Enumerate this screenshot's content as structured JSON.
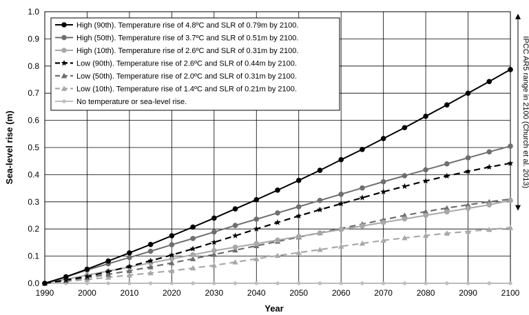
{
  "chart_data": {
    "type": "line",
    "title": "",
    "xlabel": "Year",
    "ylabel": "Sea-level rise (m)",
    "xlim": [
      1990,
      2100
    ],
    "ylim": [
      0,
      1.0
    ],
    "x_ticks": [
      "1990",
      "2000",
      "2010",
      "2020",
      "2030",
      "2040",
      "2050",
      "2060",
      "2070",
      "2080",
      "2090",
      "2100"
    ],
    "y_ticks": [
      "0.0",
      "0.1",
      "0.2",
      "0.3",
      "0.4",
      "0.5",
      "0.6",
      "0.7",
      "0.8",
      "0.9",
      "1.0"
    ],
    "grid": true,
    "legend_position": "top-left",
    "x": [
      1990,
      1995,
      2000,
      2005,
      2010,
      2015,
      2020,
      2025,
      2030,
      2035,
      2040,
      2045,
      2050,
      2055,
      2060,
      2065,
      2070,
      2075,
      2080,
      2085,
      2090,
      2095,
      2100
    ],
    "series": [
      {
        "name": "High (90th). Temperature rise of 4.8ºC and SLR of 0.79m by 2100.",
        "color": "#000000",
        "dash": "solid",
        "marker": "circle",
        "values": [
          0.0,
          0.024,
          0.052,
          0.082,
          0.112,
          0.143,
          0.175,
          0.207,
          0.24,
          0.274,
          0.308,
          0.343,
          0.379,
          0.416,
          0.455,
          0.493,
          0.533,
          0.573,
          0.615,
          0.657,
          0.7,
          0.743,
          0.787
        ]
      },
      {
        "name": "High (50th). Temperature rise of 3.7ºC and SLR of 0.51m by 2100.",
        "color": "#6e6e6e",
        "dash": "solid",
        "marker": "circle",
        "values": [
          0.0,
          0.023,
          0.049,
          0.072,
          0.095,
          0.118,
          0.142,
          0.165,
          0.189,
          0.213,
          0.236,
          0.259,
          0.282,
          0.305,
          0.328,
          0.351,
          0.374,
          0.396,
          0.418,
          0.44,
          0.462,
          0.484,
          0.505
        ]
      },
      {
        "name": "High (10th). Temperature rise of 2.6ºC and SLR of 0.31m by 2100.",
        "color": "#a8a8a8",
        "dash": "solid",
        "marker": "circle",
        "values": [
          0.0,
          0.015,
          0.03,
          0.045,
          0.06,
          0.075,
          0.09,
          0.105,
          0.12,
          0.133,
          0.146,
          0.159,
          0.172,
          0.185,
          0.198,
          0.211,
          0.224,
          0.237,
          0.25,
          0.263,
          0.276,
          0.289,
          0.305
        ]
      },
      {
        "name": "Low (90th). Temperature rise of 2.6ºC and SLR of 0.44m by 2100.",
        "color": "#000000",
        "dash": "dashed",
        "marker": "star",
        "values": [
          0.0,
          0.012,
          0.025,
          0.043,
          0.062,
          0.083,
          0.104,
          0.127,
          0.151,
          0.175,
          0.2,
          0.224,
          0.248,
          0.271,
          0.293,
          0.315,
          0.337,
          0.357,
          0.377,
          0.395,
          0.412,
          0.428,
          0.442
        ]
      },
      {
        "name": "Low (50th). Temperature rise of 2.0ºC and SLR of 0.31m by 2100.",
        "color": "#6e6e6e",
        "dash": "dashed",
        "marker": "triangle",
        "values": [
          0.0,
          0.01,
          0.021,
          0.033,
          0.046,
          0.06,
          0.075,
          0.09,
          0.106,
          0.122,
          0.138,
          0.154,
          0.17,
          0.186,
          0.202,
          0.218,
          0.234,
          0.25,
          0.264,
          0.277,
          0.289,
          0.3,
          0.31
        ]
      },
      {
        "name": "Low (10th). Temperature rise of 1.4ºC and SLR of 0.21m by 2100.",
        "color": "#a8a8a8",
        "dash": "dashed",
        "marker": "triangle",
        "values": [
          0.0,
          0.007,
          0.014,
          0.022,
          0.03,
          0.038,
          0.046,
          0.056,
          0.066,
          0.078,
          0.09,
          0.102,
          0.113,
          0.124,
          0.136,
          0.147,
          0.158,
          0.167,
          0.176,
          0.184,
          0.191,
          0.198,
          0.205
        ]
      },
      {
        "name": "No temperature or sea-level rise.",
        "color": "#bdbdbd",
        "dash": "solid",
        "marker": "circle-small",
        "values": [
          0,
          0,
          0,
          0,
          0,
          0,
          0,
          0,
          0,
          0,
          0,
          0,
          0,
          0,
          0,
          0,
          0,
          0,
          0,
          0,
          0,
          0,
          0
        ]
      }
    ],
    "annotation": {
      "text": "IPCC AR5 range in 2100 (Church et al. 2013)",
      "range": [
        0.28,
        0.98
      ]
    }
  }
}
